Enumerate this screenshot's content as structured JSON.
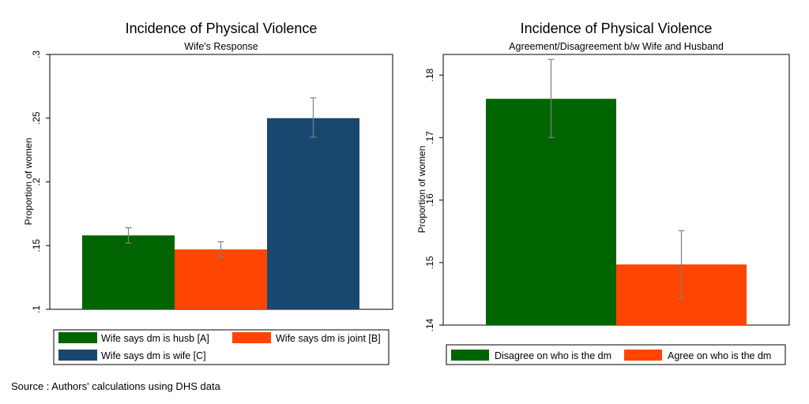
{
  "colors": {
    "green": "#006400",
    "orange": "#ff4500",
    "navy": "#1a476f",
    "errorbar": "#808080"
  },
  "source": "Source : Authors' calculations using DHS data",
  "chart_data": [
    {
      "type": "bar",
      "title": "Incidence of Physical Violence",
      "subtitle": "Wife's Response",
      "ylabel": "Proportion of women",
      "ylim": [
        0.1,
        0.3
      ],
      "yticks": [
        ".1",
        ".15",
        ".2",
        ".25",
        ".3"
      ],
      "ytick_values": [
        0.1,
        0.15,
        0.2,
        0.25,
        0.3
      ],
      "grid": false,
      "legend_position": "bottom",
      "series": [
        {
          "name": "Wife says dm is husb [A]",
          "value": 0.158,
          "ci": [
            0.152,
            0.164
          ],
          "color": "#006400"
        },
        {
          "name": "Wife says dm is joint [B]",
          "value": 0.147,
          "ci": [
            0.141,
            0.153
          ],
          "color": "#ff4500"
        },
        {
          "name": "Wife says dm is wife [C]",
          "value": 0.25,
          "ci": [
            0.235,
            0.266
          ],
          "color": "#1a476f"
        }
      ]
    },
    {
      "type": "bar",
      "title": "Incidence of Physical Violence",
      "subtitle": "Agreement/Disagreement b/w Wife and Husband",
      "ylabel": "Proportion of women",
      "ylim": [
        0.14,
        0.1833
      ],
      "yticks": [
        ".14",
        ".15",
        ".16",
        ".17",
        ".18"
      ],
      "ytick_values": [
        0.14,
        0.15,
        0.16,
        0.17,
        0.18
      ],
      "grid": false,
      "legend_position": "bottom",
      "series": [
        {
          "name": "Disagree on who is the dm",
          "value": 0.1762,
          "ci": [
            0.17,
            0.1825
          ],
          "color": "#006400"
        },
        {
          "name": "Agree on who is the dm",
          "value": 0.1497,
          "ci": [
            0.1443,
            0.1551
          ],
          "color": "#ff4500"
        }
      ]
    }
  ]
}
